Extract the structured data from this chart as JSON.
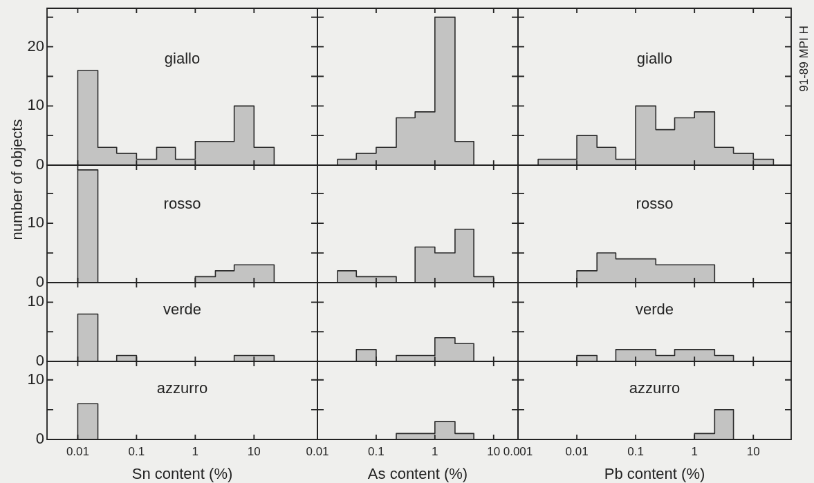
{
  "chart_data": [
    {
      "type": "histogram",
      "title": "giallo",
      "ylabel": "number of objects",
      "bins": [
        0.01,
        0.022,
        0.046,
        0.1,
        0.22,
        0.46,
        1,
        2.2,
        4.6,
        10,
        22
      ],
      "values": [
        16,
        3,
        2,
        1,
        3,
        1,
        4,
        4,
        10,
        3
      ],
      "color": "#2b2b2b",
      "log": "x",
      "xlim": [
        0.003,
        120
      ],
      "xticks": [
        0.01,
        0.1,
        1,
        10
      ],
      "ylim": [
        0,
        26.5
      ],
      "yticks": [
        0,
        {
          "value": 5,
          "label": null
        },
        10,
        {
          "value": 15,
          "label": null
        },
        20,
        {
          "value": 25,
          "label": null
        }
      ],
      "tick_labels": "y"
    },
    {
      "type": "histogram",
      "bins": [
        0.022,
        0.046,
        0.1,
        0.22,
        0.46,
        1,
        2.2,
        4.6
      ],
      "values": [
        1,
        2,
        3,
        8,
        9,
        25,
        4
      ],
      "color": "#2b2b2b",
      "log": "x",
      "xlim": [
        0.01,
        26
      ],
      "xticks": [
        0.01,
        0.1,
        1,
        10
      ],
      "ylim": [
        0,
        26.5
      ],
      "yticks": [
        0,
        {
          "value": 5,
          "label": null
        },
        10,
        {
          "value": 15,
          "label": null
        },
        20,
        {
          "value": 25,
          "label": null
        }
      ],
      "tick_labels": false
    },
    {
      "type": "histogram",
      "title": "giallo",
      "annotations": [
        "91-89 MPI H"
      ],
      "bins": [
        0.0022,
        0.0046,
        0.01,
        0.022,
        0.046,
        0.1,
        0.22,
        0.46,
        1,
        2.2,
        4.6,
        10,
        22
      ],
      "values": [
        1,
        1,
        5,
        3,
        1,
        10,
        6,
        8,
        9,
        3,
        2,
        1
      ],
      "color": "#2b2b2b",
      "log": "x",
      "xlim": [
        0.001,
        44
      ],
      "xticks": [
        0.001,
        0.01,
        0.1,
        1,
        10
      ],
      "ylim": [
        0,
        26.5
      ],
      "yticks": [
        0,
        {
          "value": 5,
          "label": null
        },
        10,
        {
          "value": 15,
          "label": null
        },
        20,
        {
          "value": 25,
          "label": null
        }
      ],
      "tick_labels": false
    },
    {
      "type": "histogram",
      "title": "rosso",
      "bins": [
        0.01,
        0.022,
        0.046,
        0.1,
        0.22,
        0.46,
        1,
        2.2,
        4.6,
        10,
        22
      ],
      "values": [
        19,
        0,
        0,
        0,
        0,
        0,
        1,
        2,
        3,
        3
      ],
      "color": "#2b2b2b",
      "log": "x",
      "xlim": [
        0.003,
        120
      ],
      "xticks": [
        0.01,
        0.1,
        1,
        10
      ],
      "ylim": [
        0,
        19.8
      ],
      "yticks": [
        0,
        {
          "value": 5,
          "label": null
        },
        10,
        {
          "value": 15,
          "label": null
        }
      ],
      "tick_labels": "y"
    },
    {
      "type": "histogram",
      "bins": [
        0.022,
        0.046,
        0.1,
        0.22,
        0.46,
        1,
        2.2,
        4.6,
        10
      ],
      "values": [
        2,
        1,
        1,
        0,
        6,
        5,
        9,
        1
      ],
      "color": "#2b2b2b",
      "log": "x",
      "xlim": [
        0.01,
        26
      ],
      "xticks": [
        0.01,
        0.1,
        1,
        10
      ],
      "ylim": [
        0,
        19.8
      ],
      "yticks": [
        0,
        {
          "value": 5,
          "label": null
        },
        10,
        {
          "value": 15,
          "label": null
        }
      ],
      "tick_labels": false
    },
    {
      "type": "histogram",
      "title": "rosso",
      "bins": [
        0.01,
        0.022,
        0.046,
        0.1,
        0.22,
        0.46,
        1,
        2.2
      ],
      "values": [
        2,
        5,
        4,
        4,
        3,
        3,
        3
      ],
      "color": "#2b2b2b",
      "log": "x",
      "xlim": [
        0.001,
        44
      ],
      "xticks": [
        0.001,
        0.01,
        0.1,
        1,
        10
      ],
      "ylim": [
        0,
        19.8
      ],
      "yticks": [
        0,
        {
          "value": 5,
          "label": null
        },
        10,
        {
          "value": 15,
          "label": null
        }
      ],
      "tick_labels": false
    },
    {
      "type": "histogram",
      "title": "verde",
      "bins": [
        0.01,
        0.022,
        0.046,
        0.1,
        0.22,
        0.46,
        1,
        2.2,
        4.6,
        10,
        22
      ],
      "values": [
        8,
        0,
        1,
        0,
        0,
        0,
        0,
        0,
        1,
        1
      ],
      "color": "#2b2b2b",
      "log": "x",
      "xlim": [
        0.003,
        120
      ],
      "xticks": [
        0.01,
        0.1,
        1,
        10
      ],
      "ylim": [
        0,
        13.3
      ],
      "yticks": [
        0,
        {
          "value": 5,
          "label": null
        },
        10
      ],
      "tick_labels": "y"
    },
    {
      "type": "histogram",
      "bins": [
        0.046,
        0.1,
        0.22,
        0.46,
        1,
        2.2,
        4.6
      ],
      "values": [
        2,
        0,
        1,
        1,
        4,
        3
      ],
      "color": "#2b2b2b",
      "log": "x",
      "xlim": [
        0.01,
        26
      ],
      "xticks": [
        0.01,
        0.1,
        1,
        10
      ],
      "ylim": [
        0,
        13.3
      ],
      "yticks": [
        0,
        {
          "value": 5,
          "label": null
        },
        10
      ],
      "tick_labels": false
    },
    {
      "type": "histogram",
      "title": "verde",
      "bins": [
        0.01,
        0.022,
        0.046,
        0.1,
        0.22,
        0.46,
        1,
        2.2,
        4.6
      ],
      "values": [
        1,
        0,
        2,
        2,
        1,
        2,
        2,
        1
      ],
      "color": "#2b2b2b",
      "log": "x",
      "xlim": [
        0.001,
        44
      ],
      "xticks": [
        0.001,
        0.01,
        0.1,
        1,
        10
      ],
      "ylim": [
        0,
        13.3
      ],
      "yticks": [
        0,
        {
          "value": 5,
          "label": null
        },
        10
      ],
      "tick_labels": false
    },
    {
      "type": "histogram",
      "title": "azzurro",
      "xlabel": "Sn content (%)",
      "bins": [
        0.01,
        0.022
      ],
      "values": [
        6
      ],
      "color": "#2b2b2b",
      "log": "x",
      "xlim": [
        0.003,
        120
      ],
      "xticks": [
        0.01,
        0.1,
        1,
        10
      ],
      "ylim": [
        0,
        13.1
      ],
      "yticks": [
        0,
        {
          "value": 5,
          "label": null
        },
        10
      ]
    },
    {
      "type": "histogram",
      "xlabel": "As content (%)",
      "bins": [
        0.22,
        0.46,
        1,
        2.2,
        4.6
      ],
      "values": [
        1,
        1,
        3,
        1
      ],
      "color": "#2b2b2b",
      "log": "x",
      "xlim": [
        0.01,
        26
      ],
      "xticks": [
        0.01,
        0.1,
        1,
        10
      ],
      "ylim": [
        0,
        13.1
      ],
      "yticks": [
        0,
        {
          "value": 5,
          "label": null
        },
        10
      ],
      "tick_labels": "x"
    },
    {
      "type": "histogram",
      "title": "azzurro",
      "xlabel": "Pb content (%)",
      "bins": [
        1,
        2.2,
        4.6
      ],
      "values": [
        1,
        5
      ],
      "color": "#2b2b2b",
      "log": "x",
      "xlim": [
        0.001,
        44
      ],
      "xticks": [
        0.001,
        0.01,
        0.1,
        1,
        10
      ],
      "ylim": [
        0,
        13.1
      ],
      "yticks": [
        0,
        {
          "value": 5,
          "label": null
        },
        10
      ],
      "tick_labels": "x"
    }
  ]
}
